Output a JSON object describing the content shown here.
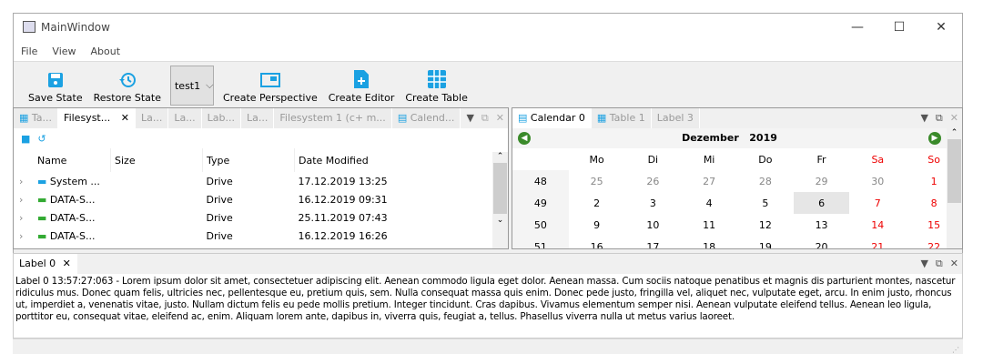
{
  "window": {
    "title": "MainWindow",
    "minimize": "—",
    "maximize": "☐",
    "close": "✕"
  },
  "menu": [
    "File",
    "View",
    "About"
  ],
  "toolbar": {
    "save": "Save State",
    "restore": "Restore State",
    "perspective": "test1",
    "create_perspective": "Create Perspective",
    "create_editor": "Create Editor",
    "create_table": "Create Table"
  },
  "left_dock": {
    "tabs": [
      "Ta...",
      "Filesyst...",
      "La...",
      "La...",
      "Lab...",
      "La...",
      "Filesystem 1 (c+ m...",
      "Calend..."
    ],
    "columns": [
      "Name",
      "Size",
      "Type",
      "Date Modified"
    ],
    "rows": [
      {
        "name": "System ...",
        "size": "",
        "type": "Drive",
        "date": "17.12.2019 13:25"
      },
      {
        "name": "DATA-S...",
        "size": "",
        "type": "Drive",
        "date": "16.12.2019 09:31"
      },
      {
        "name": "DATA-S...",
        "size": "",
        "type": "Drive",
        "date": "25.11.2019 07:43"
      },
      {
        "name": "DATA-S...",
        "size": "",
        "type": "Drive",
        "date": "16.12.2019 16:26"
      }
    ]
  },
  "right_dock": {
    "tabs": [
      "Calendar 0",
      "Table 1",
      "Label 3"
    ],
    "month": "Dezember",
    "year": "2019",
    "weekdays": [
      "Mo",
      "Di",
      "Mi",
      "Do",
      "Fr",
      "Sa",
      "So"
    ],
    "weeks": [
      {
        "w": "48",
        "d": [
          "25",
          "26",
          "27",
          "28",
          "29",
          "30",
          "1"
        ]
      },
      {
        "w": "49",
        "d": [
          "2",
          "3",
          "4",
          "5",
          "6",
          "7",
          "8"
        ]
      },
      {
        "w": "50",
        "d": [
          "9",
          "10",
          "11",
          "12",
          "13",
          "14",
          "15"
        ]
      },
      {
        "w": "51",
        "d": [
          "16",
          "17",
          "18",
          "19",
          "20",
          "21",
          "22"
        ]
      }
    ],
    "selected": "6"
  },
  "bottom_dock": {
    "tab": "Label 0",
    "text": "Label 0 13:57:27:063 - Lorem ipsum dolor sit amet, consectetuer adipiscing elit. Aenean commodo ligula eget dolor. Aenean massa. Cum sociis natoque penatibus et magnis dis parturient montes, nascetur ridiculus mus. Donec quam felis, ultricies nec, pellentesque eu, pretium quis, sem. Nulla consequat massa quis enim. Donec pede justo, fringilla vel, aliquet nec, vulputate eget, arcu. In enim justo, rhoncus ut, imperdiet a, venenatis vitae, justo. Nullam dictum felis eu pede mollis pretium. Integer tincidunt. Cras dapibus. Vivamus elementum semper nisi. Aenean vulputate eleifend tellus. Aenean leo ligula, porttitor eu, consequat vitae, eleifend ac, enim. Aliquam lorem ante, dapibus in, viverra quis, feugiat a, tellus. Phasellus viverra nulla ut metus varius laoreet."
  },
  "colors": {
    "accent": "#1ba1e2",
    "weekend": "#e00000"
  }
}
